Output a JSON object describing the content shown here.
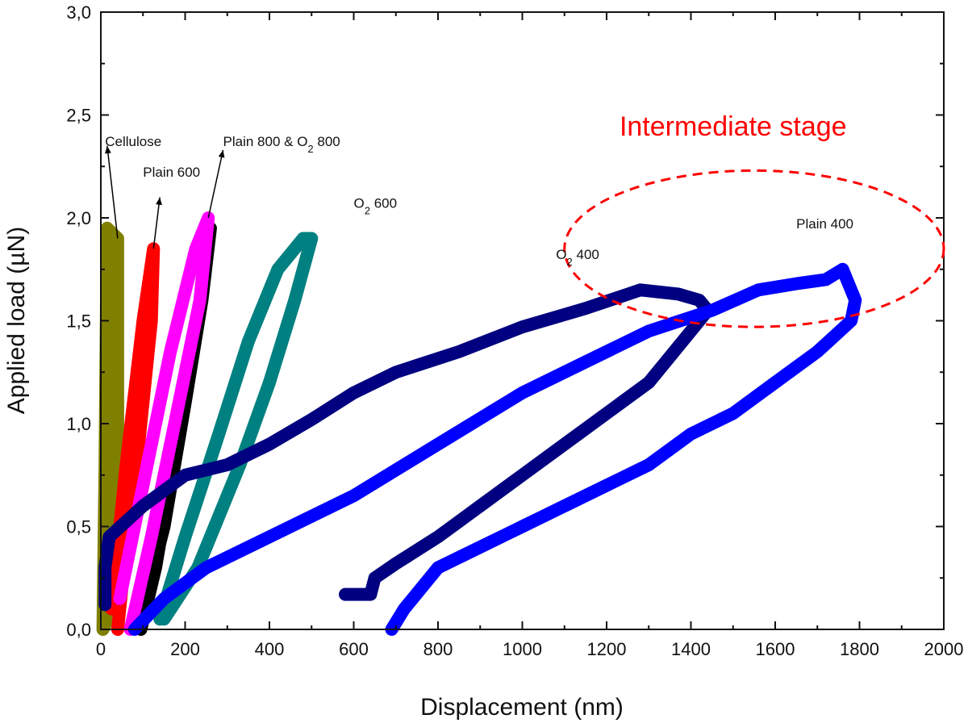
{
  "chart_data": {
    "type": "line",
    "title": "",
    "xlabel": "Displacement (nm)",
    "ylabel": "Applied load (µN)",
    "xlim": [
      0,
      2000
    ],
    "ylim": [
      0,
      3.0
    ],
    "x_ticks": [
      0,
      200,
      400,
      600,
      800,
      1000,
      1200,
      1400,
      1600,
      1800,
      2000
    ],
    "x_tick_labels": [
      "0",
      "200",
      "400",
      "600",
      "800",
      "1000",
      "1200",
      "1400",
      "1600",
      "1800",
      "2000"
    ],
    "y_ticks": [
      0,
      0.5,
      1.0,
      1.5,
      2.0,
      2.5,
      3.0
    ],
    "y_tick_labels": [
      "0,0",
      "0,5",
      "1,0",
      "1,5",
      "2,0",
      "2,5",
      "3,0"
    ],
    "grid": false,
    "legend": "none",
    "series": [
      {
        "name": "Cellulose",
        "color": "#808000",
        "points": [
          [
            5,
            0
          ],
          [
            10,
            0.8
          ],
          [
            15,
            1.95
          ],
          [
            40,
            1.9
          ],
          [
            40,
            0.9
          ],
          [
            30,
            0.4
          ],
          [
            30,
            0.1
          ],
          [
            5,
            0
          ]
        ]
      },
      {
        "name": "Plain 600",
        "color": "#ff0000",
        "points": [
          [
            25,
            0.1
          ],
          [
            60,
            0.8
          ],
          [
            100,
            1.5
          ],
          [
            125,
            1.85
          ],
          [
            120,
            1.5
          ],
          [
            90,
            0.9
          ],
          [
            55,
            0.3
          ],
          [
            40,
            0
          ]
        ]
      },
      {
        "name": "Plain 800 & O2 800 (black)",
        "color": "#000000",
        "points": [
          [
            100,
            0.1
          ],
          [
            150,
            0.5
          ],
          [
            200,
            1.1
          ],
          [
            240,
            1.6
          ],
          [
            260,
            1.95
          ],
          [
            230,
            1.5
          ],
          [
            180,
            0.9
          ],
          [
            130,
            0.3
          ],
          [
            95,
            0
          ]
        ]
      },
      {
        "name": "Plain 800 & O2 800 (magenta)",
        "color": "#ff00ff",
        "points": [
          [
            45,
            0.15
          ],
          [
            100,
            0.7
          ],
          [
            165,
            1.35
          ],
          [
            225,
            1.85
          ],
          [
            255,
            2.0
          ],
          [
            235,
            1.6
          ],
          [
            180,
            1.05
          ],
          [
            120,
            0.45
          ],
          [
            70,
            0
          ]
        ]
      },
      {
        "name": "O2 600",
        "color": "#008080",
        "points": [
          [
            140,
            0.05
          ],
          [
            200,
            0.45
          ],
          [
            280,
            0.95
          ],
          [
            350,
            1.4
          ],
          [
            420,
            1.75
          ],
          [
            480,
            1.9
          ],
          [
            500,
            1.9
          ],
          [
            460,
            1.6
          ],
          [
            400,
            1.2
          ],
          [
            330,
            0.8
          ],
          [
            280,
            0.55
          ],
          [
            230,
            0.3
          ],
          [
            150,
            0.05
          ]
        ]
      },
      {
        "name": "O2 400",
        "color": "#000080",
        "points": [
          [
            580,
            0.17
          ],
          [
            640,
            0.17
          ],
          [
            650,
            0.25
          ],
          [
            700,
            0.32
          ],
          [
            800,
            0.45
          ],
          [
            900,
            0.6
          ],
          [
            1000,
            0.75
          ],
          [
            1100,
            0.9
          ],
          [
            1200,
            1.05
          ],
          [
            1300,
            1.2
          ],
          [
            1400,
            1.45
          ],
          [
            1440,
            1.55
          ],
          [
            1420,
            1.6
          ],
          [
            1370,
            1.63
          ],
          [
            1280,
            1.65
          ],
          [
            1150,
            1.56
          ],
          [
            1000,
            1.47
          ],
          [
            850,
            1.35
          ],
          [
            700,
            1.25
          ],
          [
            600,
            1.15
          ],
          [
            500,
            1.02
          ],
          [
            400,
            0.9
          ],
          [
            300,
            0.8
          ],
          [
            200,
            0.75
          ],
          [
            100,
            0.6
          ],
          [
            20,
            0.45
          ],
          [
            10,
            0.3
          ],
          [
            10,
            0.12
          ]
        ]
      },
      {
        "name": "Plain 400",
        "color": "#0000ff",
        "points": [
          [
            690,
            0
          ],
          [
            720,
            0.1
          ],
          [
            800,
            0.3
          ],
          [
            900,
            0.4
          ],
          [
            1000,
            0.5
          ],
          [
            1100,
            0.6
          ],
          [
            1200,
            0.7
          ],
          [
            1300,
            0.8
          ],
          [
            1400,
            0.95
          ],
          [
            1500,
            1.05
          ],
          [
            1600,
            1.2
          ],
          [
            1700,
            1.35
          ],
          [
            1780,
            1.5
          ],
          [
            1790,
            1.6
          ],
          [
            1760,
            1.75
          ],
          [
            1720,
            1.7
          ],
          [
            1650,
            1.68
          ],
          [
            1560,
            1.65
          ],
          [
            1450,
            1.55
          ],
          [
            1300,
            1.45
          ],
          [
            1150,
            1.3
          ],
          [
            1000,
            1.15
          ],
          [
            800,
            0.9
          ],
          [
            600,
            0.65
          ],
          [
            400,
            0.45
          ],
          [
            250,
            0.3
          ],
          [
            150,
            0.15
          ],
          [
            80,
            0
          ]
        ]
      }
    ],
    "annotations": [
      {
        "text": "Cellulose",
        "x": 10,
        "y": 2.35
      },
      {
        "text": "Plain 600",
        "x": 100,
        "y": 2.2
      },
      {
        "text": "Plain 800 & O",
        "sub": "2",
        "text2": " 800",
        "x": 290,
        "y": 2.35
      },
      {
        "text": "O",
        "sub": "2",
        "text2": " 600",
        "x": 600,
        "y": 2.05
      },
      {
        "text": "O",
        "sub": "2",
        "text2": " 400",
        "x": 1080,
        "y": 1.8
      },
      {
        "text": "Plain 400",
        "x": 1650,
        "y": 1.95
      },
      {
        "text": "Intermediate stage",
        "x": 1500,
        "y": 2.4,
        "color": "#ff0000",
        "size": "big"
      }
    ],
    "ellipse": {
      "cx": 1550,
      "cy": 1.85,
      "rx": 450,
      "ry": 0.38,
      "color": "#ff0000",
      "style": "dashed"
    }
  }
}
